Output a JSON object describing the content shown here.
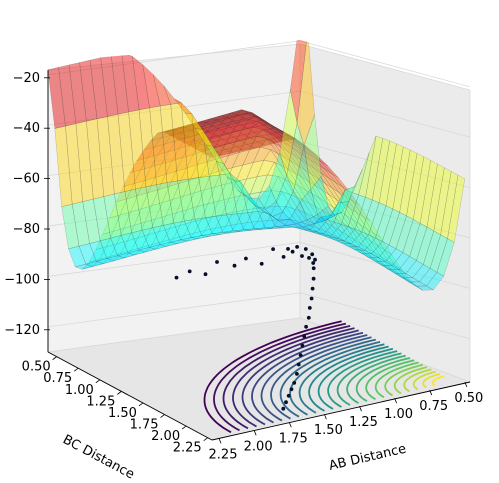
{
  "chart_data": {
    "type": "surface3d",
    "title": "",
    "xlabel": "AB Distance",
    "ylabel": "BC Distance",
    "zlabel": "",
    "x_ticks": [
      "0.50",
      "0.75",
      "1.00",
      "1.25",
      "1.50",
      "1.75",
      "2.00",
      "2.25"
    ],
    "y_ticks": [
      "0.50",
      "0.75",
      "1.00",
      "1.25",
      "1.50",
      "1.75",
      "2.00",
      "2.25"
    ],
    "z_ticks": [
      "−20",
      "−40",
      "−60",
      "−80",
      "−100",
      "−120"
    ],
    "xlim": [
      0.5,
      2.3
    ],
    "ylim": [
      0.4,
      2.3
    ],
    "zlim": [
      -130,
      -18
    ],
    "surface": {
      "colormap": "jet",
      "alpha": 0.45,
      "description_points": {
        "x": [
          0.5,
          0.75,
          1.0,
          1.25,
          1.5,
          1.75,
          2.0,
          2.25
        ],
        "y": [
          0.5,
          0.75,
          1.0,
          1.25,
          1.5,
          1.75,
          2.0,
          2.25
        ]
      }
    },
    "contour": {
      "colormap": "viridis",
      "levels": 25,
      "offset_z": -130
    },
    "trajectory_series": [
      {
        "x": [
          1.6,
          1.5,
          1.4,
          1.3,
          1.2,
          1.1,
          1.0,
          0.9,
          0.85,
          0.8,
          0.78,
          0.76,
          0.75,
          0.76,
          0.78,
          0.8,
          0.83,
          0.86,
          0.9,
          0.95,
          1.0,
          1.05,
          1.1,
          1.15,
          1.2,
          1.25,
          1.3,
          1.35,
          1.4,
          1.45,
          1.5,
          1.55,
          1.6,
          1.65,
          1.7
        ],
        "y": [
          0.75,
          0.74,
          0.76,
          0.73,
          0.77,
          0.74,
          0.76,
          0.73,
          0.77,
          0.74,
          0.76,
          0.78,
          0.82,
          0.88,
          0.95,
          1.02,
          1.08,
          1.15,
          1.2,
          1.28,
          1.35,
          1.42,
          1.48,
          1.55,
          1.6,
          1.66,
          1.72,
          1.78,
          1.84,
          1.9,
          1.95,
          2.0,
          2.05,
          2.1,
          2.15
        ],
        "z": [
          -103,
          -102,
          -104,
          -101,
          -103,
          -102,
          -105,
          -101,
          -104,
          -102,
          -103,
          -101,
          -104,
          -100,
          -102,
          -99,
          -101,
          -98,
          -100,
          -102,
          -104,
          -106,
          -108,
          -110,
          -112,
          -114,
          -116,
          -118,
          -120,
          -122,
          -124,
          -125,
          -126,
          -127,
          -128
        ]
      }
    ]
  }
}
